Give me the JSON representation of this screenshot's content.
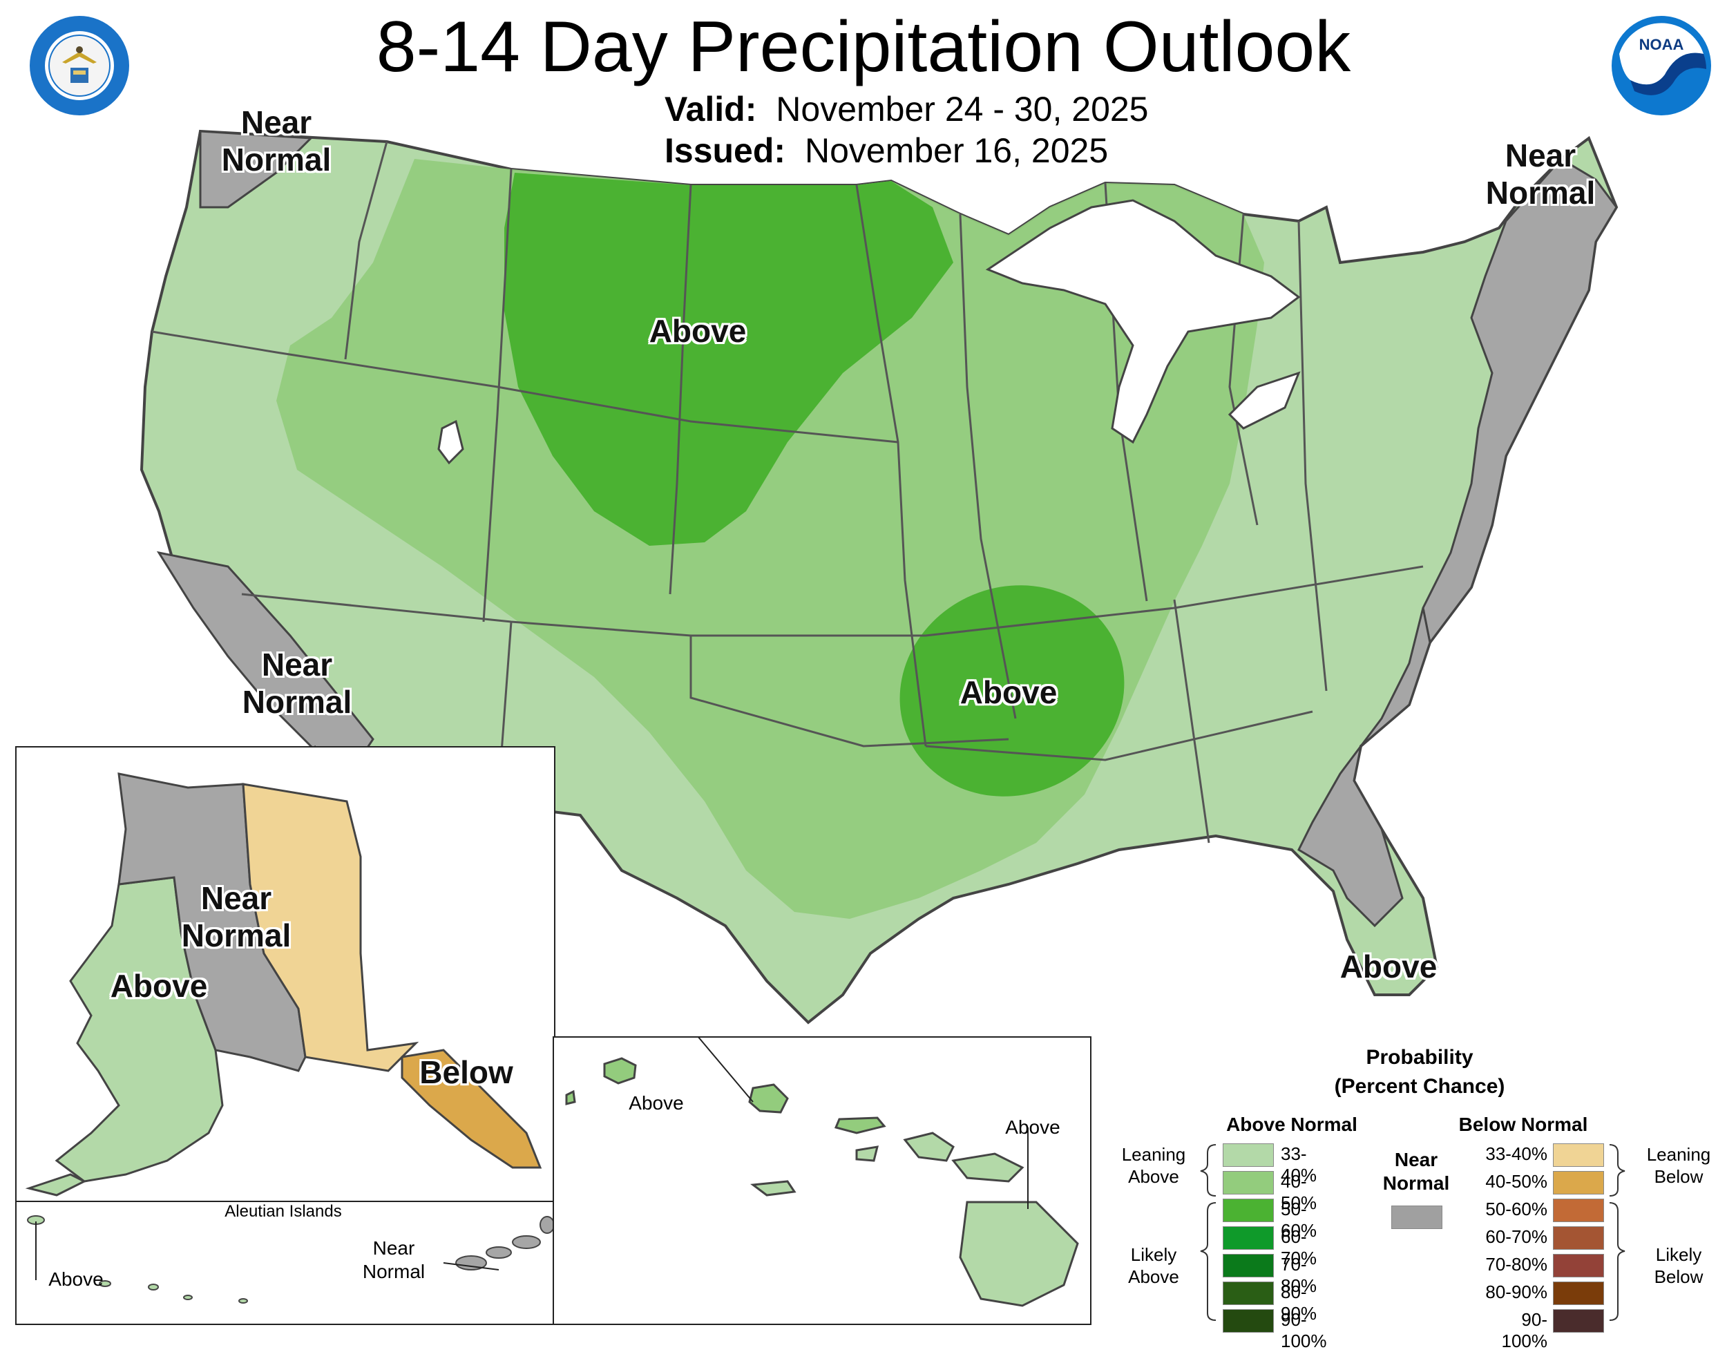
{
  "header": {
    "title": "8-14 Day Precipitation Outlook",
    "valid_label": "Valid:",
    "valid_value": "November 24 - 30, 2025",
    "issued_label": "Issued:",
    "issued_value": "November 16, 2025"
  },
  "logos": {
    "commerce_ring_text": "DEPARTMENT OF COMMERCE · UNITED STATES OF AMERICA",
    "noaa_text": "NOAA"
  },
  "conus_labels": {
    "northwest": [
      "Near",
      "Normal"
    ],
    "northeast": [
      "Near",
      "Normal"
    ],
    "california": [
      "Near",
      "Normal"
    ],
    "plains": "Above",
    "arkansas": "Above",
    "florida": "Above"
  },
  "alaska": {
    "west": "Above",
    "central": [
      "Near",
      "Normal"
    ],
    "southeast": "Below"
  },
  "aleutians": {
    "title": "Aleutian Islands",
    "west": "Above",
    "east": [
      "Near",
      "Normal"
    ]
  },
  "hawaii": {
    "west": "Above",
    "east": "Above"
  },
  "legend": {
    "title_line1": "Probability",
    "title_line2": "(Percent Chance)",
    "above_header": "Above Normal",
    "below_header": "Below Normal",
    "near_header": [
      "Near",
      "Normal"
    ],
    "near_color": "#a0a0a0",
    "leaning_above": [
      "Leaning",
      "Above"
    ],
    "likely_above": [
      "Likely",
      "Above"
    ],
    "leaning_below": [
      "Leaning",
      "Below"
    ],
    "likely_below": [
      "Likely",
      "Below"
    ],
    "above_rows": [
      {
        "range": "33-40%",
        "color": "#b3d9a8"
      },
      {
        "range": "40-50%",
        "color": "#93cc7d"
      },
      {
        "range": "50-60%",
        "color": "#4bb232"
      },
      {
        "range": "60-70%",
        "color": "#0f9a2a"
      },
      {
        "range": "70-80%",
        "color": "#0b7a1b"
      },
      {
        "range": "80-90%",
        "color": "#2a5e15"
      },
      {
        "range": "90-100%",
        "color": "#244a10"
      }
    ],
    "below_rows": [
      {
        "range": "33-40%",
        "color": "#f0d495"
      },
      {
        "range": "40-50%",
        "color": "#dba84b"
      },
      {
        "range": "50-60%",
        "color": "#c26a36"
      },
      {
        "range": "60-70%",
        "color": "#a45533"
      },
      {
        "range": "70-80%",
        "color": "#934238"
      },
      {
        "range": "80-90%",
        "color": "#7a3c0a"
      },
      {
        "range": "90-100%",
        "color": "#4a2c2c"
      }
    ]
  },
  "colors": {
    "lean_above": "#b3d9a8",
    "above_40": "#93cc7d",
    "above_50": "#4bb232",
    "near": "#a6a6a6",
    "lean_below": "#f0d495",
    "below_40": "#dba84b",
    "lake": "#ffffff",
    "border": "#444444"
  }
}
